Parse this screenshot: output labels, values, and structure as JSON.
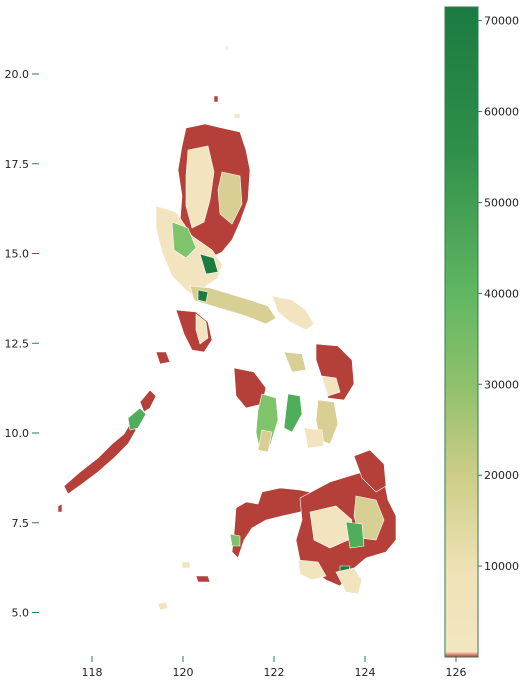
{
  "chart_data": {
    "type": "choropleth",
    "region": "Philippines",
    "xlim": [
      116.6,
      127.0
    ],
    "ylim": [
      3.9,
      21.6
    ],
    "x_ticks": [
      118,
      120,
      122,
      124,
      126
    ],
    "y_ticks": [
      5.0,
      7.5,
      10.0,
      12.5,
      15.0,
      17.5,
      20.0
    ],
    "x_tick_labels": [
      "118",
      "120",
      "122",
      "124",
      "126"
    ],
    "y_tick_labels": [
      "5.0",
      "7.5",
      "10.0",
      "12.5",
      "15.0",
      "17.5",
      "20.0"
    ],
    "colorbar": {
      "min": 0,
      "max": 71500,
      "ticks": [
        10000,
        20000,
        30000,
        40000,
        50000,
        60000,
        70000
      ],
      "tick_labels": [
        "10000",
        "20000",
        "30000",
        "40000",
        "50000",
        "60000",
        "70000"
      ],
      "colormap": [
        "#c0392b",
        "#f2e6c2",
        "#c9cc84",
        "#63b862",
        "#1b7a40"
      ]
    },
    "colors": {
      "red": "#b5403a",
      "cream": "#f1e4bf",
      "tan": "#d8cf95",
      "lightgreen": "#7fc36a",
      "green": "#4eae5a",
      "darkgreen": "#1e7b3e"
    }
  }
}
